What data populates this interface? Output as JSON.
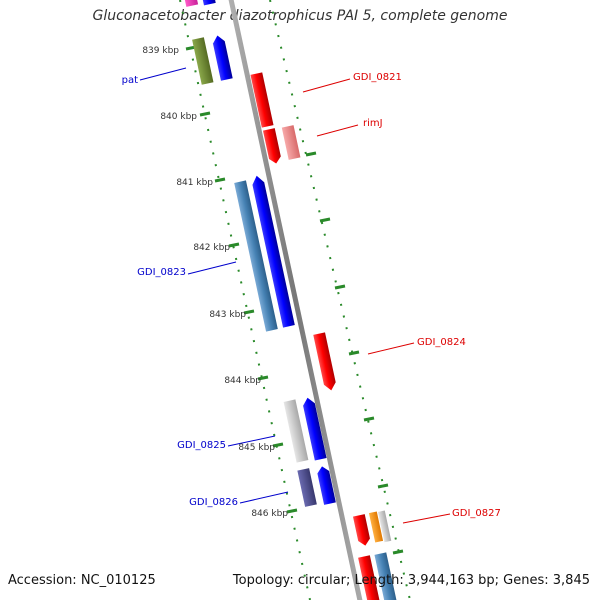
{
  "title": "Gluconacetobacter diazotrophicus PAI 5, complete genome",
  "footer": {
    "accession": "Accession: NC_010125",
    "summary": "Topology: circular; Length: 3,944,163 bp; Genes: 3,845"
  },
  "scale_labels": [
    "839 kbp",
    "840 kbp",
    "841 kbp",
    "842 kbp",
    "843 kbp",
    "844 kbp",
    "845 kbp",
    "846 kbp"
  ],
  "genes": [
    {
      "label": "pat",
      "strand": "forward",
      "color": "#0000cc"
    },
    {
      "label": "GDI_0821",
      "strand": "reverse",
      "color": "#dd0000"
    },
    {
      "label": "rimJ",
      "strand": "reverse",
      "color": "#dd0000"
    },
    {
      "label": "GDI_0823",
      "strand": "forward",
      "color": "#0000cc"
    },
    {
      "label": "GDI_0824",
      "strand": "reverse",
      "color": "#dd0000"
    },
    {
      "label": "GDI_0825",
      "strand": "forward",
      "color": "#0000cc"
    },
    {
      "label": "GDI_0826",
      "strand": "forward",
      "color": "#0000cc"
    },
    {
      "label": "GDI_0827",
      "strand": "reverse",
      "color": "#dd0000"
    }
  ],
  "colors": {
    "forward_gene": "#0000ff",
    "reverse_gene": "#ff0000",
    "backbone": "#888888",
    "tick": "#2a8a2a"
  }
}
